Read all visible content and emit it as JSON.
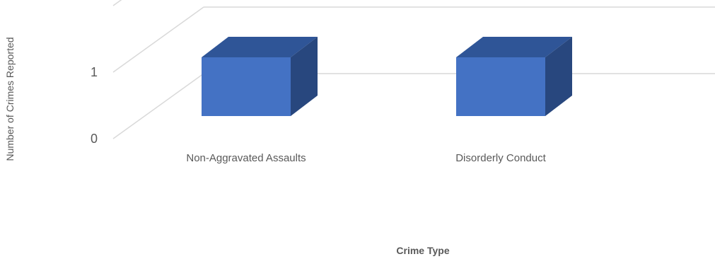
{
  "chart_data": {
    "type": "bar",
    "categories": [
      "Non-Aggravated Assaults",
      "Disorderly Conduct"
    ],
    "values": [
      1,
      1
    ],
    "xlabel": "Crime Type",
    "ylabel": "Number of Crimes Reported",
    "ylim": [
      0,
      2
    ],
    "yticks": [
      0,
      1
    ],
    "grid": true,
    "legend": "none",
    "three_d": true,
    "colors": {
      "bar_front": "#4472C4",
      "bar_top": "#2F5597",
      "bar_side": "#28477E",
      "grid": "#D9D9D9",
      "text": "#595959"
    }
  }
}
